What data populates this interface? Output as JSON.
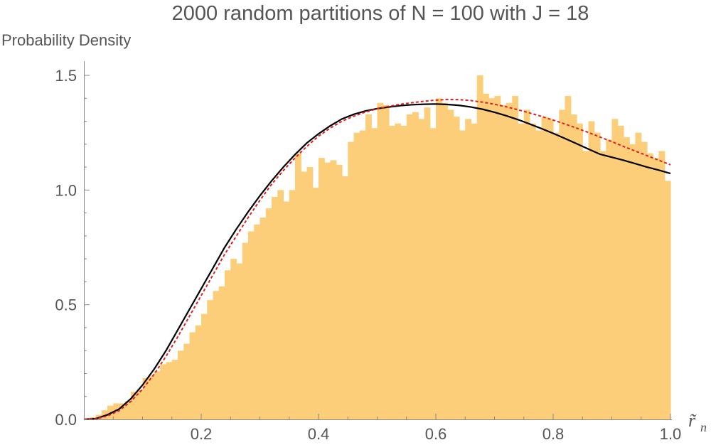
{
  "chart_data": {
    "type": "bar",
    "title": "2000 random partitions of N = 100 with J = 18",
    "ylabel": "Probability Density",
    "xlabel": "r̃",
    "xlabel_subscript": "n",
    "xlim": [
      0,
      1.0
    ],
    "ylim": [
      0,
      1.55
    ],
    "x_ticks": [
      0.2,
      0.4,
      0.6,
      0.8,
      1.0
    ],
    "x_tick_labels": [
      "0.2",
      "0.4",
      "0.6",
      "0.8",
      "1.0"
    ],
    "y_ticks": [
      0.0,
      0.5,
      1.0,
      1.5
    ],
    "y_tick_labels": [
      "0.0",
      "0.5",
      "1.0",
      "1.5"
    ],
    "grid": false,
    "bin_width": 0.01,
    "histogram": {
      "color": "#FCCE7A",
      "bin_starts": [
        0.0,
        0.01,
        0.02,
        0.03,
        0.04,
        0.05,
        0.06,
        0.07,
        0.08,
        0.09,
        0.1,
        0.11,
        0.12,
        0.13,
        0.14,
        0.15,
        0.16,
        0.17,
        0.18,
        0.19,
        0.2,
        0.21,
        0.22,
        0.23,
        0.24,
        0.25,
        0.26,
        0.27,
        0.28,
        0.29,
        0.3,
        0.31,
        0.32,
        0.33,
        0.34,
        0.35,
        0.36,
        0.37,
        0.38,
        0.39,
        0.4,
        0.41,
        0.42,
        0.43,
        0.44,
        0.45,
        0.46,
        0.47,
        0.48,
        0.49,
        0.5,
        0.51,
        0.52,
        0.53,
        0.54,
        0.55,
        0.56,
        0.57,
        0.58,
        0.59,
        0.6,
        0.61,
        0.62,
        0.63,
        0.64,
        0.65,
        0.66,
        0.67,
        0.68,
        0.69,
        0.7,
        0.71,
        0.72,
        0.73,
        0.74,
        0.75,
        0.76,
        0.77,
        0.78,
        0.79,
        0.8,
        0.81,
        0.82,
        0.83,
        0.84,
        0.85,
        0.86,
        0.87,
        0.88,
        0.89,
        0.9,
        0.91,
        0.92,
        0.93,
        0.94,
        0.95,
        0.96,
        0.97,
        0.98,
        0.99
      ],
      "values": [
        0.005,
        0.01,
        0.02,
        0.04,
        0.06,
        0.07,
        0.07,
        0.08,
        0.12,
        0.13,
        0.18,
        0.19,
        0.21,
        0.24,
        0.25,
        0.26,
        0.3,
        0.33,
        0.38,
        0.41,
        0.46,
        0.52,
        0.56,
        0.58,
        0.65,
        0.7,
        0.68,
        0.77,
        0.82,
        0.85,
        0.88,
        0.92,
        0.97,
        1.0,
        0.95,
        1.0,
        1.16,
        1.08,
        1.1,
        1.01,
        1.14,
        1.12,
        1.13,
        1.11,
        1.06,
        1.21,
        1.25,
        1.26,
        1.33,
        1.27,
        1.38,
        1.37,
        1.28,
        1.29,
        1.28,
        1.33,
        1.34,
        1.31,
        1.36,
        1.27,
        1.4,
        1.38,
        1.35,
        1.32,
        1.26,
        1.31,
        1.29,
        1.5,
        1.42,
        1.4,
        1.41,
        1.37,
        1.38,
        1.41,
        1.29,
        1.35,
        1.29,
        1.26,
        1.32,
        1.31,
        1.25,
        1.35,
        1.41,
        1.33,
        1.29,
        1.17,
        1.3,
        1.25,
        1.17,
        1.22,
        1.31,
        1.28,
        1.23,
        1.2,
        1.25,
        1.21,
        1.16,
        1.14,
        1.17,
        1.04
      ]
    },
    "series": [
      {
        "style": "solid",
        "color": "#000000",
        "x": [
          0.0,
          0.02,
          0.04,
          0.06,
          0.08,
          0.1,
          0.12,
          0.14,
          0.16,
          0.18,
          0.2,
          0.22,
          0.24,
          0.26,
          0.28,
          0.3,
          0.32,
          0.34,
          0.36,
          0.38,
          0.4,
          0.42,
          0.44,
          0.46,
          0.48,
          0.5,
          0.52,
          0.54,
          0.56,
          0.58,
          0.6,
          0.62,
          0.64,
          0.66,
          0.68,
          0.7,
          0.72,
          0.74,
          0.76,
          0.78,
          0.8,
          0.82,
          0.84,
          0.86,
          0.88,
          0.9,
          0.92,
          0.94,
          0.96,
          0.98,
          1.0
        ],
        "y": [
          0.0,
          0.003,
          0.02,
          0.045,
          0.09,
          0.15,
          0.22,
          0.3,
          0.39,
          0.48,
          0.57,
          0.66,
          0.75,
          0.83,
          0.905,
          0.975,
          1.04,
          1.1,
          1.155,
          1.205,
          1.245,
          1.28,
          1.31,
          1.33,
          1.345,
          1.355,
          1.362,
          1.368,
          1.372,
          1.374,
          1.375,
          1.373,
          1.369,
          1.362,
          1.352,
          1.339,
          1.324,
          1.307,
          1.288,
          1.268,
          1.247,
          1.225,
          1.202,
          1.179,
          1.156,
          1.143,
          1.13,
          1.115,
          1.1,
          1.087,
          1.072
        ]
      },
      {
        "style": "dashed",
        "color": "#E02020",
        "x": [
          0.0,
          0.02,
          0.04,
          0.06,
          0.08,
          0.1,
          0.12,
          0.14,
          0.16,
          0.18,
          0.2,
          0.22,
          0.24,
          0.26,
          0.28,
          0.3,
          0.32,
          0.34,
          0.36,
          0.38,
          0.4,
          0.42,
          0.44,
          0.46,
          0.48,
          0.5,
          0.52,
          0.54,
          0.56,
          0.58,
          0.6,
          0.62,
          0.64,
          0.66,
          0.68,
          0.7,
          0.72,
          0.74,
          0.76,
          0.78,
          0.8,
          0.82,
          0.84,
          0.86,
          0.88,
          0.9,
          0.92,
          0.94,
          0.96,
          0.98,
          1.0
        ],
        "y": [
          0.0,
          0.002,
          0.015,
          0.038,
          0.078,
          0.132,
          0.198,
          0.275,
          0.36,
          0.45,
          0.54,
          0.63,
          0.72,
          0.8,
          0.88,
          0.955,
          1.025,
          1.085,
          1.14,
          1.19,
          1.235,
          1.27,
          1.3,
          1.322,
          1.34,
          1.354,
          1.365,
          1.374,
          1.381,
          1.387,
          1.392,
          1.395,
          1.394,
          1.39,
          1.383,
          1.374,
          1.363,
          1.35,
          1.336,
          1.321,
          1.305,
          1.288,
          1.27,
          1.251,
          1.231,
          1.211,
          1.19,
          1.17,
          1.15,
          1.13,
          1.11
        ]
      }
    ]
  }
}
